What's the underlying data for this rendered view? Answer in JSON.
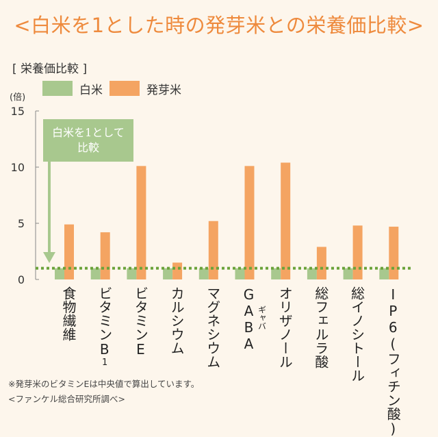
{
  "title": "<白米を1とした時の発芽米との栄養価比較>",
  "section_label": "[ 栄養価比較 ]",
  "legend": [
    {
      "name": "白米",
      "color": "#a8c88e"
    },
    {
      "name": "発芽米",
      "color": "#f4a462"
    }
  ],
  "unit": "(倍)",
  "callout": {
    "line1": "白米を1として",
    "line2": "比較"
  },
  "baseline_color": "#6aa33a",
  "chart_data": {
    "type": "bar",
    "title": "栄養価比較",
    "ylabel": "(倍)",
    "ylim": [
      0,
      15
    ],
    "yticks": [
      0,
      5,
      10,
      15
    ],
    "baseline": 1,
    "categories": [
      {
        "main": "食物繊維"
      },
      {
        "main": "ビタミンB",
        "sub": "1"
      },
      {
        "main": "ビタミンE"
      },
      {
        "main": "カルシウム"
      },
      {
        "main": "マグネシウム"
      },
      {
        "main": "GABA",
        "small": "ギャバ"
      },
      {
        "main": "オリザノール"
      },
      {
        "main": "総フェルラ酸"
      },
      {
        "main": "総イノシトール"
      },
      {
        "main": "IP6(フィチン酸)"
      }
    ],
    "series": [
      {
        "name": "白米",
        "values": [
          1,
          1,
          1,
          1,
          1,
          1,
          1,
          1,
          1,
          1
        ]
      },
      {
        "name": "発芽米",
        "values": [
          4.9,
          4.2,
          10.1,
          1.5,
          5.2,
          10.1,
          10.4,
          2.9,
          4.8,
          4.7
        ]
      }
    ]
  },
  "footnote": "※発芽米のビタミンEは中央値で算出しています。",
  "source": "<ファンケル総合研究所調べ>"
}
